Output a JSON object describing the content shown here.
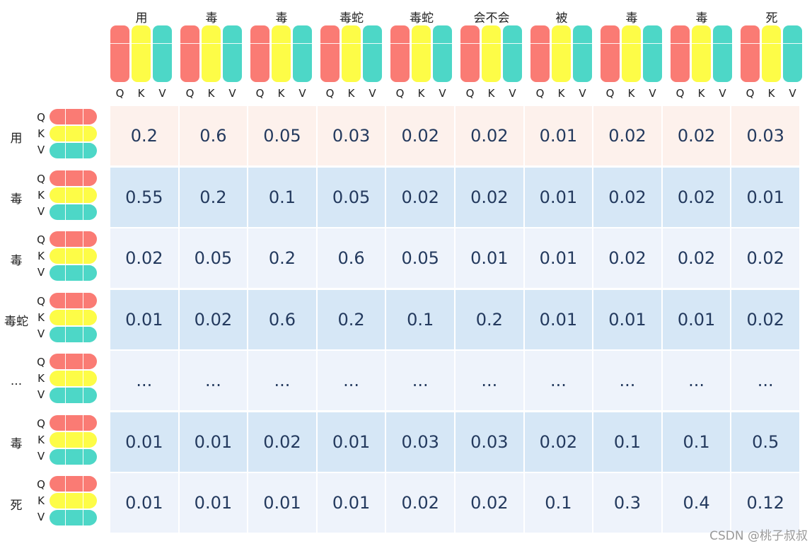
{
  "colors": {
    "Q": "#fa7b74",
    "K": "#fdfc47",
    "V": "#4dd7c7"
  },
  "qkv_labels": [
    "Q",
    "K",
    "V"
  ],
  "columns": [
    "用",
    "毒",
    "毒",
    "毒蛇",
    "毒蛇",
    "会不会",
    "被",
    "毒",
    "毒",
    "死"
  ],
  "rows": [
    {
      "label": "用",
      "values": [
        "0.2",
        "0.6",
        "0.05",
        "0.03",
        "0.02",
        "0.02",
        "0.01",
        "0.02",
        "0.02",
        "0.03"
      ]
    },
    {
      "label": "毒",
      "values": [
        "0.55",
        "0.2",
        "0.1",
        "0.05",
        "0.02",
        "0.02",
        "0.01",
        "0.02",
        "0.02",
        "0.01"
      ]
    },
    {
      "label": "毒",
      "values": [
        "0.02",
        "0.05",
        "0.2",
        "0.6",
        "0.05",
        "0.01",
        "0.01",
        "0.02",
        "0.02",
        "0.02"
      ]
    },
    {
      "label": "毒蛇",
      "values": [
        "0.01",
        "0.02",
        "0.6",
        "0.2",
        "0.1",
        "0.2",
        "0.01",
        "0.01",
        "0.01",
        "0.02"
      ]
    },
    {
      "label": "...",
      "values": [
        "...",
        "...",
        "...",
        "...",
        "...",
        "...",
        "...",
        "...",
        "...",
        "..."
      ]
    },
    {
      "label": "毒",
      "values": [
        "0.01",
        "0.01",
        "0.02",
        "0.01",
        "0.03",
        "0.03",
        "0.02",
        "0.1",
        "0.1",
        "0.5"
      ]
    },
    {
      "label": "死",
      "values": [
        "0.01",
        "0.01",
        "0.01",
        "0.01",
        "0.02",
        "0.02",
        "0.1",
        "0.3",
        "0.4",
        "0.12"
      ]
    }
  ],
  "watermark": "CSDN @桃子叔叔"
}
